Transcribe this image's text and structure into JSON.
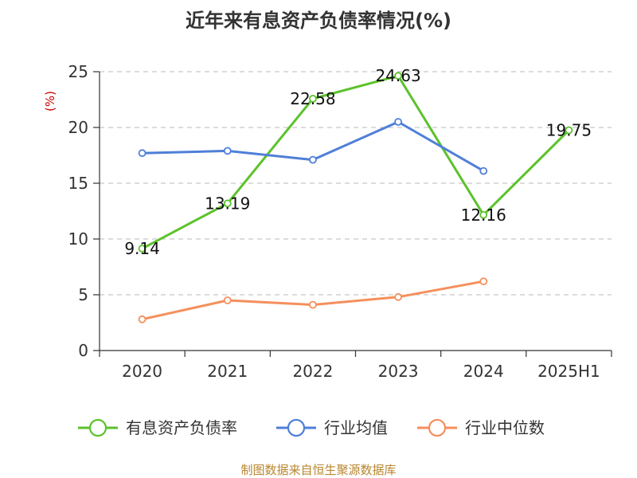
{
  "chart_data": {
    "type": "line",
    "title": "近年来有息资产负债率情况(%)",
    "ylabel": "(%)",
    "ylim": [
      0,
      25
    ],
    "yticks": [
      "0",
      "5",
      "10",
      "15",
      "20",
      "25"
    ],
    "categories": [
      "2020",
      "2021",
      "2022",
      "2023",
      "2024",
      "2025H1"
    ],
    "grid": true,
    "legend_position": "bottom",
    "series": [
      {
        "name": "有息资产负债率",
        "color": "#5cc22b",
        "values": [
          9.14,
          13.19,
          22.58,
          24.63,
          12.16,
          19.75
        ],
        "labels": [
          "9.14",
          "13.19",
          "22.58",
          "24.63",
          "12.16",
          "19.75"
        ]
      },
      {
        "name": "行业均值",
        "color": "#4f7fd8",
        "values": [
          17.7,
          17.9,
          17.1,
          20.5,
          16.1,
          null
        ],
        "labels": null
      },
      {
        "name": "行业中位数",
        "color": "#f58f5c",
        "values": [
          2.8,
          4.5,
          4.1,
          4.8,
          6.2,
          null
        ],
        "labels": null
      }
    ]
  },
  "ylabel_color": "#cc0000",
  "source": {
    "text": "制图数据来自恒生聚源数据库",
    "color": "#b8862e"
  }
}
